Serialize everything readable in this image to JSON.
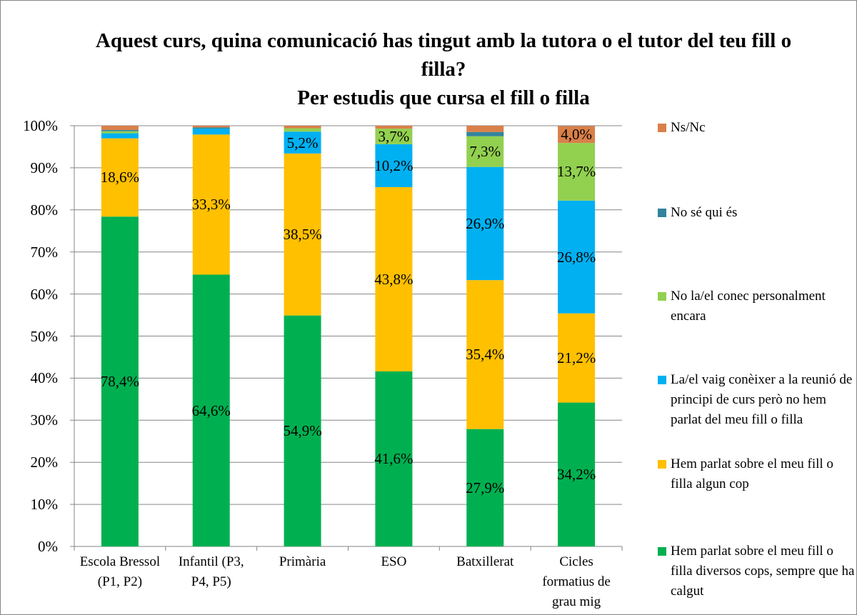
{
  "chart_data": {
    "type": "stacked_bar",
    "title": "Aquest curs, quina comunicació has tingut amb la tutora o el tutor del teu fill o filla?",
    "subtitle": "Per estudis que cursa el fill o filla",
    "categories": [
      "Escola Bressol (P1, P2)",
      "Infantil (P3, P4, P5)",
      "Primària",
      "ESO",
      "Batxillerat",
      "Cicles formatius de grau mig"
    ],
    "series": [
      {
        "name": "Hem parlat sobre el meu fill o filla diversos cops, sempre que ha calgut",
        "color": "#00b050",
        "values": [
          78.4,
          64.6,
          54.9,
          41.6,
          27.9,
          34.2
        ],
        "value_labels": [
          "78,4%",
          "64,6%",
          "54,9%",
          "41,6%",
          "27,9%",
          "34,2%"
        ]
      },
      {
        "name": "Hem parlat sobre el meu fill o filla algun cop",
        "color": "#ffc000",
        "values": [
          18.6,
          33.3,
          38.5,
          43.8,
          35.4,
          21.2
        ],
        "value_labels": [
          "18,6%",
          "33,3%",
          "38,5%",
          "43,8%",
          "35,4%",
          "21,2%"
        ]
      },
      {
        "name": "La/el vaig conèixer a la reunió de principi de curs però no hem parlat del meu fill o filla",
        "color": "#00b0f0",
        "values": [
          1.2,
          1.4,
          5.2,
          10.2,
          26.9,
          26.8
        ],
        "value_labels": [
          null,
          null,
          "5,2%",
          "10,2%",
          "26,9%",
          "26,8%"
        ]
      },
      {
        "name": "No la/el conec personalment encara",
        "color": "#92d050",
        "values": [
          0.5,
          0,
          0.8,
          3.7,
          7.3,
          13.7
        ],
        "value_labels": [
          null,
          null,
          null,
          "3,7%",
          "7,3%",
          "13,7%"
        ]
      },
      {
        "name": "No sé qui és",
        "color": "#31849b",
        "values": [
          0.3,
          0.3,
          0,
          0,
          1.0,
          0
        ],
        "value_labels": [
          null,
          null,
          null,
          null,
          null,
          null
        ]
      },
      {
        "name": "Ns/Nc",
        "color": "#d9804a",
        "values": [
          1.0,
          0.4,
          0.6,
          0.7,
          1.5,
          4.0
        ],
        "value_labels": [
          null,
          null,
          null,
          null,
          null,
          "4,0%"
        ]
      }
    ],
    "ylim": [
      0,
      100
    ],
    "yticks": [
      {
        "value": 0,
        "label": "0%"
      },
      {
        "value": 10,
        "label": "10%"
      },
      {
        "value": 20,
        "label": "20%"
      },
      {
        "value": 30,
        "label": "30%"
      },
      {
        "value": 40,
        "label": "40%"
      },
      {
        "value": 50,
        "label": "50%"
      },
      {
        "value": 60,
        "label": "60%"
      },
      {
        "value": 70,
        "label": "70%"
      },
      {
        "value": 80,
        "label": "80%"
      },
      {
        "value": 90,
        "label": "90%"
      },
      {
        "value": 100,
        "label": "100%"
      }
    ],
    "grid": true,
    "legend": "right"
  }
}
